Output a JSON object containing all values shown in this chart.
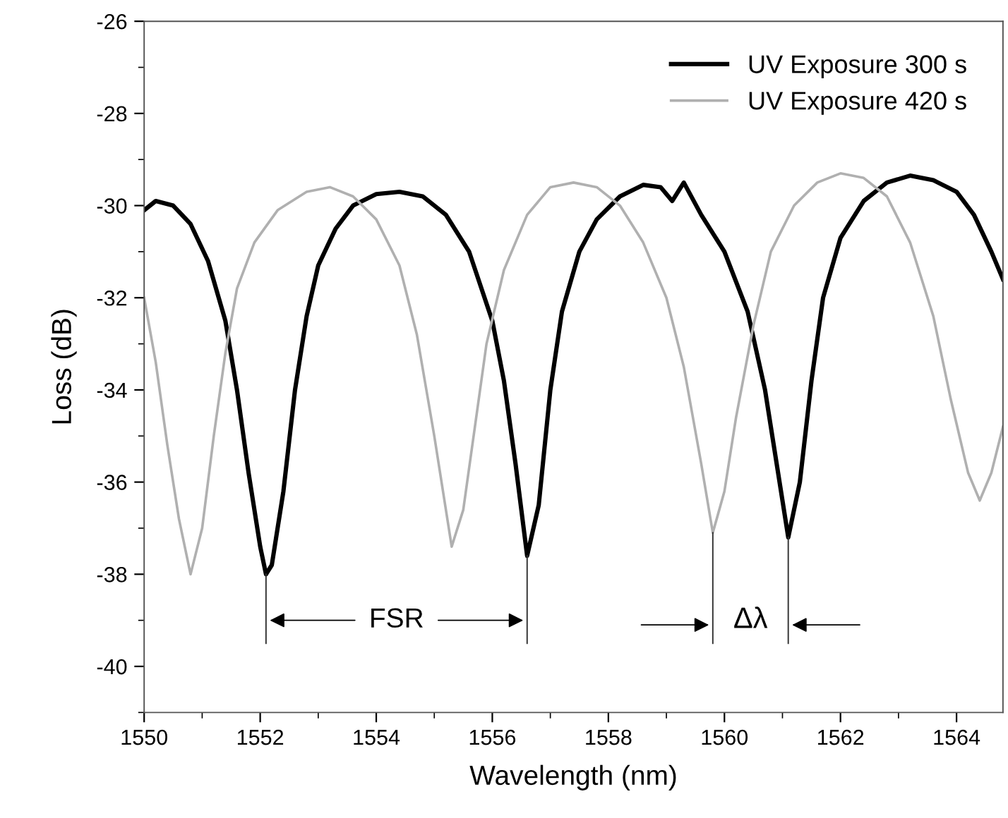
{
  "chart_data": {
    "type": "line",
    "xlabel": "Wavelength (nm)",
    "ylabel": "Loss (dB)",
    "xlim": [
      1550,
      1564.8
    ],
    "xticks": [
      1550,
      1552,
      1554,
      1556,
      1558,
      1560,
      1562,
      1564
    ],
    "ylim": [
      -41,
      -26
    ],
    "yticks": [
      -40,
      -38,
      -36,
      -34,
      -32,
      -30,
      -28,
      -26
    ],
    "grid": false,
    "legend": "top right",
    "marker": "none",
    "line_style": "solid",
    "annotations": [
      "FSR",
      {
        "text": "Δλ",
        "x": 1561.1,
        "y": -37.2
      }
    ],
    "series": [
      {
        "name": "UV Exposure 300 s",
        "color": "#000000",
        "x": [
          1550.0,
          1550.2,
          1550.5,
          1550.8,
          1551.1,
          1551.4,
          1551.6,
          1551.8,
          1552.0,
          1552.1,
          1552.2,
          1552.4,
          1552.6,
          1552.8,
          1553.0,
          1553.3,
          1553.6,
          1554.0,
          1554.4,
          1554.8,
          1555.2,
          1555.6,
          1556.0,
          1556.2,
          1556.4,
          1556.6,
          1556.8,
          1557.0,
          1557.2,
          1557.5,
          1557.8,
          1558.2,
          1558.6,
          1558.9,
          1559.1,
          1559.3,
          1559.6,
          1560.0,
          1560.4,
          1560.7,
          1560.9,
          1561.1,
          1561.3,
          1561.5,
          1561.7,
          1562.0,
          1562.4,
          1562.8,
          1563.2,
          1563.6,
          1564.0,
          1564.3,
          1564.6,
          1564.8
        ],
        "values": [
          -30.1,
          -29.9,
          -30.0,
          -30.4,
          -31.2,
          -32.5,
          -34.0,
          -35.8,
          -37.4,
          -38.0,
          -37.8,
          -36.2,
          -34.0,
          -32.4,
          -31.3,
          -30.5,
          -30.0,
          -29.75,
          -29.7,
          -29.8,
          -30.2,
          -31.0,
          -32.5,
          -33.8,
          -35.6,
          -37.6,
          -36.5,
          -34.0,
          -32.3,
          -31.0,
          -30.3,
          -29.8,
          -29.55,
          -29.6,
          -29.9,
          -29.5,
          -30.2,
          -31.0,
          -32.3,
          -34.0,
          -35.6,
          -37.2,
          -36.0,
          -33.8,
          -32.0,
          -30.7,
          -29.9,
          -29.5,
          -29.35,
          -29.45,
          -29.7,
          -30.2,
          -31.0,
          -31.6
        ]
      },
      {
        "name": "UV Exposure 420 s",
        "color": "#b0b0b0",
        "x": [
          1550.0,
          1550.2,
          1550.4,
          1550.6,
          1550.8,
          1551.0,
          1551.2,
          1551.4,
          1551.6,
          1551.9,
          1552.3,
          1552.8,
          1553.2,
          1553.6,
          1554.0,
          1554.4,
          1554.7,
          1555.0,
          1555.3,
          1555.5,
          1555.7,
          1555.9,
          1556.2,
          1556.6,
          1557.0,
          1557.4,
          1557.8,
          1558.2,
          1558.6,
          1559.0,
          1559.3,
          1559.6,
          1559.8,
          1560.0,
          1560.2,
          1560.5,
          1560.8,
          1561.2,
          1561.6,
          1562.0,
          1562.4,
          1562.8,
          1563.2,
          1563.6,
          1563.9,
          1564.2,
          1564.4,
          1564.6,
          1564.8
        ],
        "values": [
          -32.0,
          -33.4,
          -35.2,
          -36.8,
          -38.0,
          -37.0,
          -35.0,
          -33.2,
          -31.8,
          -30.8,
          -30.1,
          -29.7,
          -29.6,
          -29.8,
          -30.3,
          -31.3,
          -32.8,
          -35.0,
          -37.4,
          -36.6,
          -34.8,
          -33.0,
          -31.4,
          -30.2,
          -29.6,
          -29.5,
          -29.6,
          -30.0,
          -30.8,
          -32.0,
          -33.5,
          -35.6,
          -37.1,
          -36.2,
          -34.6,
          -32.6,
          -31.0,
          -30.0,
          -29.5,
          -29.3,
          -29.4,
          -29.8,
          -30.8,
          -32.4,
          -34.2,
          -35.8,
          -36.4,
          -35.8,
          -34.8
        ]
      }
    ]
  }
}
